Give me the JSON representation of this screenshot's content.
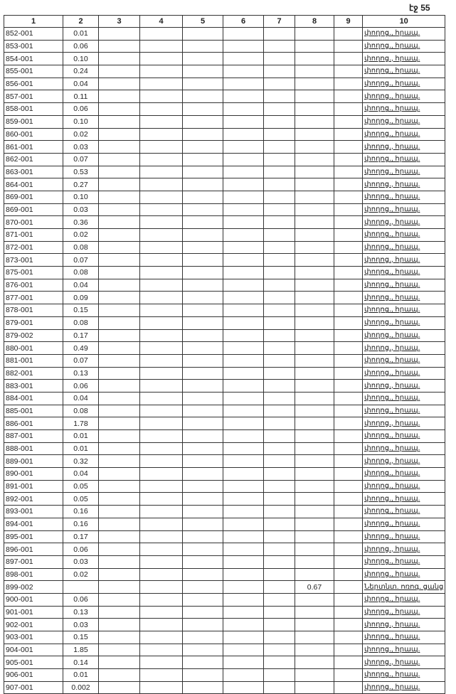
{
  "page_label": "էջ 55",
  "headers": [
    "1",
    "2",
    "3",
    "4",
    "5",
    "6",
    "7",
    "8",
    "9",
    "10"
  ],
  "rows": [
    [
      "852-001",
      "0.01",
      "",
      "",
      "",
      "",
      "",
      "",
      "",
      "փողոց., հրապ."
    ],
    [
      "853-001",
      "0.06",
      "",
      "",
      "",
      "",
      "",
      "",
      "",
      "փողոց., հրապ."
    ],
    [
      "854-001",
      "0.10",
      "",
      "",
      "",
      "",
      "",
      "",
      "",
      "փողոց., հրապ."
    ],
    [
      "855-001",
      "0.24",
      "",
      "",
      "",
      "",
      "",
      "",
      "",
      "փողոց., հրապ."
    ],
    [
      "856-001",
      "0.04",
      "",
      "",
      "",
      "",
      "",
      "",
      "",
      "փողոց., հրապ."
    ],
    [
      "857-001",
      "0.11",
      "",
      "",
      "",
      "",
      "",
      "",
      "",
      "փողոց., հրապ."
    ],
    [
      "858-001",
      "0.06",
      "",
      "",
      "",
      "",
      "",
      "",
      "",
      "փողոց., հրապ."
    ],
    [
      "859-001",
      "0.10",
      "",
      "",
      "",
      "",
      "",
      "",
      "",
      "փողոց., հրապ."
    ],
    [
      "860-001",
      "0.02",
      "",
      "",
      "",
      "",
      "",
      "",
      "",
      "փողոց., հրապ."
    ],
    [
      "861-001",
      "0.03",
      "",
      "",
      "",
      "",
      "",
      "",
      "",
      "փողոց., հրապ."
    ],
    [
      "862-001",
      "0.07",
      "",
      "",
      "",
      "",
      "",
      "",
      "",
      "փողոց., հրապ."
    ],
    [
      "863-001",
      "0.53",
      "",
      "",
      "",
      "",
      "",
      "",
      "",
      "փողոց., հրապ."
    ],
    [
      "864-001",
      "0.27",
      "",
      "",
      "",
      "",
      "",
      "",
      "",
      "փողոց., հրապ."
    ],
    [
      "869-001",
      "0.10",
      "",
      "",
      "",
      "",
      "",
      "",
      "",
      "փողոց., հրապ."
    ],
    [
      "869-001",
      "0.03",
      "",
      "",
      "",
      "",
      "",
      "",
      "",
      "փողոց., հրապ."
    ],
    [
      "870-001",
      "0.36",
      "",
      "",
      "",
      "",
      "",
      "",
      "",
      "փողոց., հրապ."
    ],
    [
      "871-001",
      "0.02",
      "",
      "",
      "",
      "",
      "",
      "",
      "",
      "փողոց., հրապ."
    ],
    [
      "872-001",
      "0.08",
      "",
      "",
      "",
      "",
      "",
      "",
      "",
      "փողոց., հրապ."
    ],
    [
      "873-001",
      "0.07",
      "",
      "",
      "",
      "",
      "",
      "",
      "",
      "փողոց., հրապ."
    ],
    [
      "875-001",
      "0.08",
      "",
      "",
      "",
      "",
      "",
      "",
      "",
      "փողոց., հրապ."
    ],
    [
      "876-001",
      "0.04",
      "",
      "",
      "",
      "",
      "",
      "",
      "",
      "փողոց., հրապ."
    ],
    [
      "877-001",
      "0.09",
      "",
      "",
      "",
      "",
      "",
      "",
      "",
      "փողոց., հրապ."
    ],
    [
      "878-001",
      "0.15",
      "",
      "",
      "",
      "",
      "",
      "",
      "",
      "փողոց., հրապ."
    ],
    [
      "879-001",
      "0.08",
      "",
      "",
      "",
      "",
      "",
      "",
      "",
      "փողոց., հրապ."
    ],
    [
      "879-002",
      "0.17",
      "",
      "",
      "",
      "",
      "",
      "",
      "",
      "փողոց., հրապ."
    ],
    [
      "880-001",
      "0.49",
      "",
      "",
      "",
      "",
      "",
      "",
      "",
      "փողոց., հրապ."
    ],
    [
      "881-001",
      "0.07",
      "",
      "",
      "",
      "",
      "",
      "",
      "",
      "փողոց., հրապ."
    ],
    [
      "882-001",
      "0.13",
      "",
      "",
      "",
      "",
      "",
      "",
      "",
      "փողոց., հրապ."
    ],
    [
      "883-001",
      "0.06",
      "",
      "",
      "",
      "",
      "",
      "",
      "",
      "փողոց., հրապ."
    ],
    [
      "884-001",
      "0.04",
      "",
      "",
      "",
      "",
      "",
      "",
      "",
      "փողոց., հրապ."
    ],
    [
      "885-001",
      "0.08",
      "",
      "",
      "",
      "",
      "",
      "",
      "",
      "փողոց., հրապ."
    ],
    [
      "886-001",
      "1.78",
      "",
      "",
      "",
      "",
      "",
      "",
      "",
      "փողոց., հրապ."
    ],
    [
      "887-001",
      "0.01",
      "",
      "",
      "",
      "",
      "",
      "",
      "",
      "փողոց., հրապ."
    ],
    [
      "888-001",
      "0.01",
      "",
      "",
      "",
      "",
      "",
      "",
      "",
      "փողոց., հրապ."
    ],
    [
      "889-001",
      "0.32",
      "",
      "",
      "",
      "",
      "",
      "",
      "",
      "փողոց., հրապ."
    ],
    [
      "890-001",
      "0.04",
      "",
      "",
      "",
      "",
      "",
      "",
      "",
      "փողոց., հրապ."
    ],
    [
      "891-001",
      "0.05",
      "",
      "",
      "",
      "",
      "",
      "",
      "",
      "փողոց., հրապ."
    ],
    [
      "892-001",
      "0.05",
      "",
      "",
      "",
      "",
      "",
      "",
      "",
      "փողոց., հրապ."
    ],
    [
      "893-001",
      "0.16",
      "",
      "",
      "",
      "",
      "",
      "",
      "",
      "փողոց., հրապ."
    ],
    [
      "894-001",
      "0.16",
      "",
      "",
      "",
      "",
      "",
      "",
      "",
      "փողոց., հրապ."
    ],
    [
      "895-001",
      "0.17",
      "",
      "",
      "",
      "",
      "",
      "",
      "",
      "փողոց., հրապ."
    ],
    [
      "896-001",
      "0.06",
      "",
      "",
      "",
      "",
      "",
      "",
      "",
      "փողոց., հրապ."
    ],
    [
      "897-001",
      "0.03",
      "",
      "",
      "",
      "",
      "",
      "",
      "",
      "փողոց., հրապ."
    ],
    [
      "898-001",
      "0.02",
      "",
      "",
      "",
      "",
      "",
      "",
      "",
      "փողոց., հրապ."
    ],
    [
      "899-002",
      "",
      "",
      "",
      "",
      "",
      "",
      "0.67",
      "",
      "Ներտնտ. ոռոգ. ցանց"
    ],
    [
      "900-001",
      "0.06",
      "",
      "",
      "",
      "",
      "",
      "",
      "",
      "փողոց., հրապ."
    ],
    [
      "901-001",
      "0.13",
      "",
      "",
      "",
      "",
      "",
      "",
      "",
      "փողոց., հրապ."
    ],
    [
      "902-001",
      "0.03",
      "",
      "",
      "",
      "",
      "",
      "",
      "",
      "փողոց., հրապ."
    ],
    [
      "903-001",
      "0.15",
      "",
      "",
      "",
      "",
      "",
      "",
      "",
      "փողոց., հրապ."
    ],
    [
      "904-001",
      "1.85",
      "",
      "",
      "",
      "",
      "",
      "",
      "",
      "փողոց., հրապ."
    ],
    [
      "905-001",
      "0.14",
      "",
      "",
      "",
      "",
      "",
      "",
      "",
      "փողոց., հրապ."
    ],
    [
      "906-001",
      "0.01",
      "",
      "",
      "",
      "",
      "",
      "",
      "",
      "փողոց., հրապ."
    ],
    [
      "907-001",
      "0.002",
      "",
      "",
      "",
      "",
      "",
      "",
      "",
      "փողոց., հրապ."
    ]
  ]
}
